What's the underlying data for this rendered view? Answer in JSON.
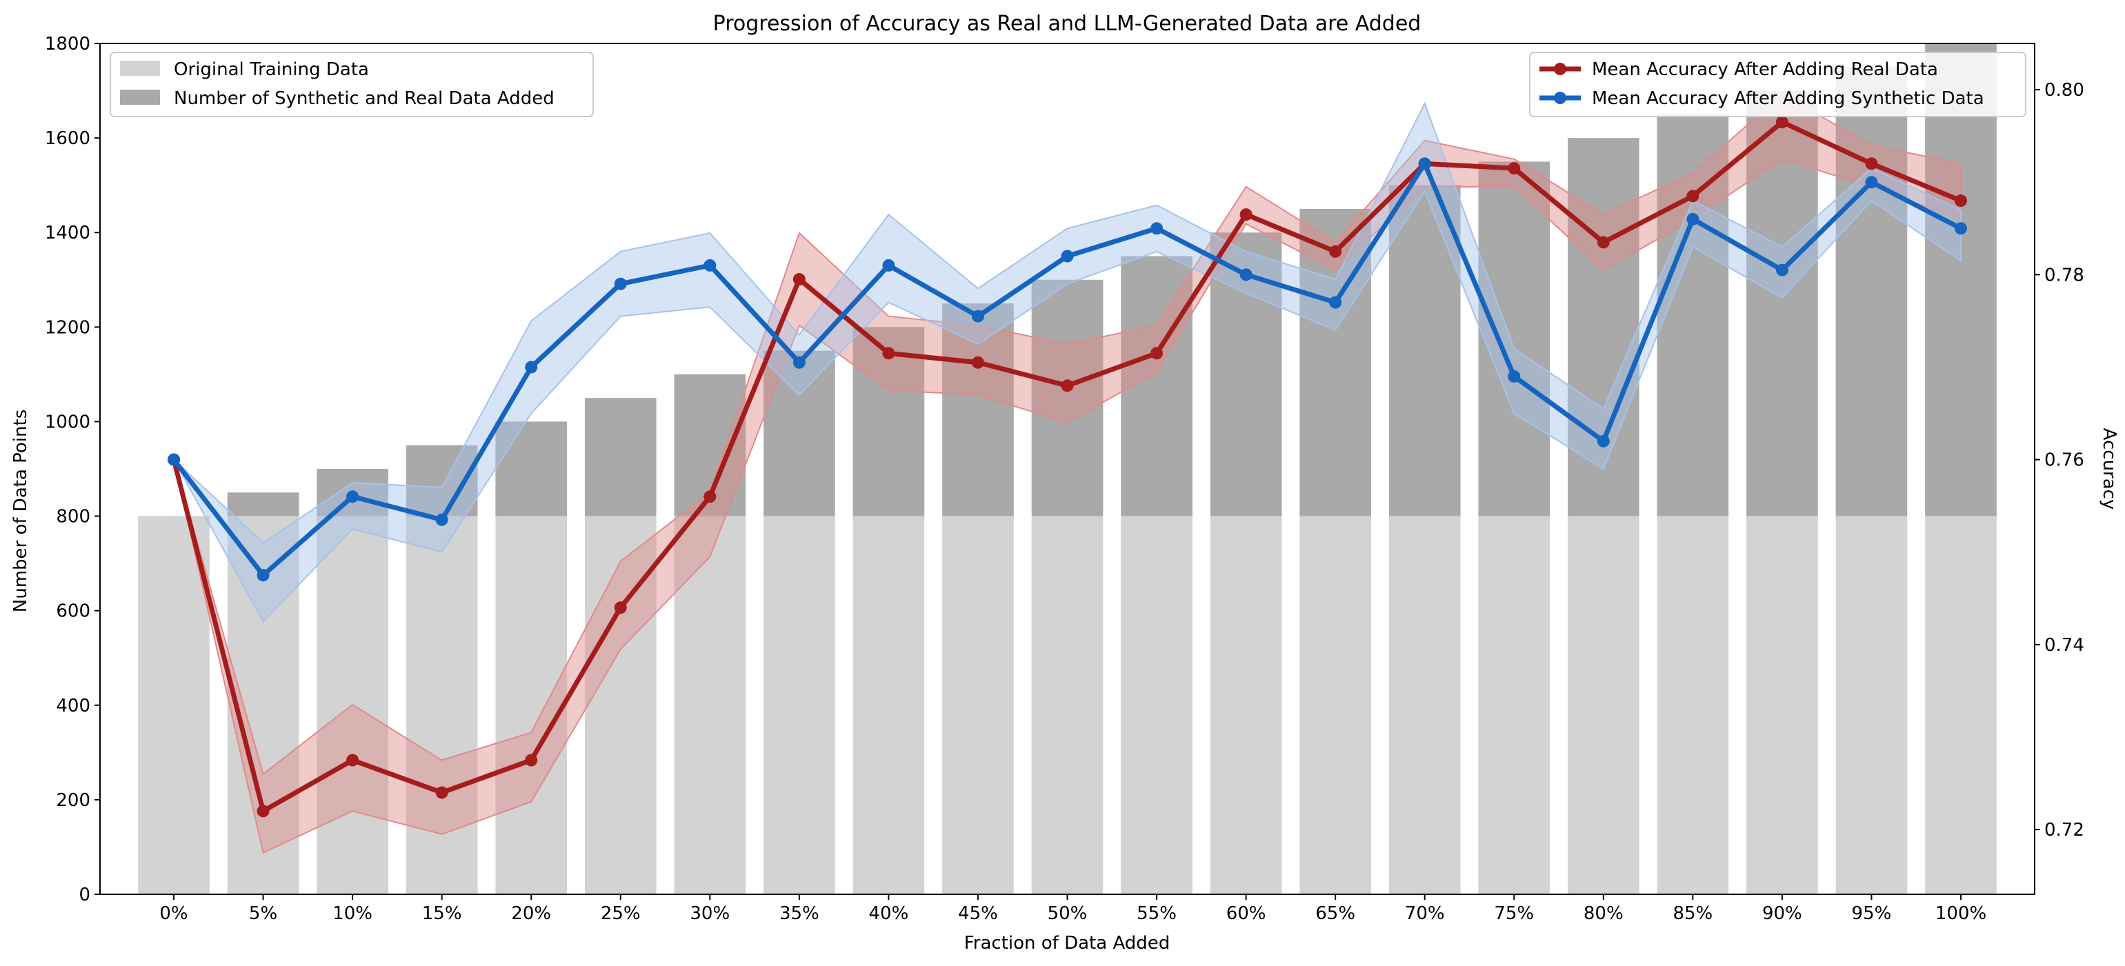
{
  "chart_data": {
    "type": "bar",
    "title": "Progression of Accuracy as Real and LLM-Generated Data are Added",
    "xlabel": "Fraction of Data Added",
    "ylabel": "Number of Data Points",
    "y2label": "Accuracy",
    "categories": [
      "0%",
      "5%",
      "10%",
      "15%",
      "20%",
      "25%",
      "30%",
      "35%",
      "40%",
      "45%",
      "50%",
      "55%",
      "60%",
      "65%",
      "70%",
      "75%",
      "80%",
      "85%",
      "90%",
      "95%",
      "100%"
    ],
    "ylim": [
      0,
      1800
    ],
    "y2lim": [
      0.713,
      0.805
    ],
    "yticks": [
      0,
      200,
      400,
      600,
      800,
      1000,
      1200,
      1400,
      1600,
      1800
    ],
    "y2ticks": [
      0.72,
      0.74,
      0.76,
      0.78,
      0.8
    ],
    "bar_series": [
      {
        "name": "Original Training Data",
        "color": "#d3d3d3",
        "values": [
          800,
          800,
          800,
          800,
          800,
          800,
          800,
          800,
          800,
          800,
          800,
          800,
          800,
          800,
          800,
          800,
          800,
          800,
          800,
          800,
          800
        ]
      },
      {
        "name": "Number of Synthetic and Real Data Added",
        "color": "#a9a9a9",
        "values": [
          0,
          50,
          100,
          150,
          200,
          250,
          300,
          350,
          400,
          450,
          500,
          550,
          600,
          650,
          700,
          750,
          800,
          850,
          900,
          950,
          1000
        ]
      }
    ],
    "series": [
      {
        "name": "Mean Accuracy After Adding Real Data",
        "color": "#a51c1c",
        "band_color": "#e08a8a",
        "values": [
          0.76,
          0.722,
          0.7275,
          0.724,
          0.7275,
          0.744,
          0.756,
          0.7795,
          0.7715,
          0.7705,
          0.768,
          0.7715,
          0.7865,
          0.7825,
          0.792,
          0.7915,
          0.7835,
          0.7885,
          0.7965,
          0.792,
          0.788
        ],
        "lower": [
          0.76,
          0.7175,
          0.722,
          0.7195,
          0.723,
          0.7395,
          0.7495,
          0.7745,
          0.7675,
          0.767,
          0.764,
          0.7695,
          0.7855,
          0.7805,
          0.7895,
          0.7895,
          0.7805,
          0.786,
          0.7925,
          0.7895,
          0.786
        ],
        "upper": [
          0.76,
          0.726,
          0.7335,
          0.7275,
          0.7305,
          0.749,
          0.7565,
          0.7845,
          0.7755,
          0.7745,
          0.7725,
          0.7745,
          0.7895,
          0.7835,
          0.7945,
          0.7925,
          0.7865,
          0.791,
          0.7995,
          0.794,
          0.792
        ]
      },
      {
        "name": "Mean Accuracy After Adding Synthetic Data",
        "color": "#1565c0",
        "band_color": "#a5c3e8",
        "values": [
          0.76,
          0.7475,
          0.756,
          0.7535,
          0.77,
          0.779,
          0.781,
          0.7705,
          0.781,
          0.7755,
          0.782,
          0.785,
          0.78,
          0.777,
          0.792,
          0.769,
          0.762,
          0.786,
          0.7805,
          0.79,
          0.785
        ],
        "lower": [
          0.76,
          0.7425,
          0.7525,
          0.75,
          0.765,
          0.7755,
          0.7765,
          0.767,
          0.777,
          0.7725,
          0.779,
          0.7825,
          0.778,
          0.774,
          0.789,
          0.765,
          0.759,
          0.783,
          0.7775,
          0.788,
          0.7815
        ],
        "upper": [
          0.76,
          0.751,
          0.7575,
          0.757,
          0.775,
          0.7825,
          0.7845,
          0.7735,
          0.7865,
          0.7785,
          0.785,
          0.7875,
          0.7825,
          0.7795,
          0.7985,
          0.772,
          0.7655,
          0.788,
          0.783,
          0.7915,
          0.787
        ]
      }
    ],
    "legend_left_position": "upper-left",
    "legend_right_position": "upper-right",
    "grid": false
  }
}
